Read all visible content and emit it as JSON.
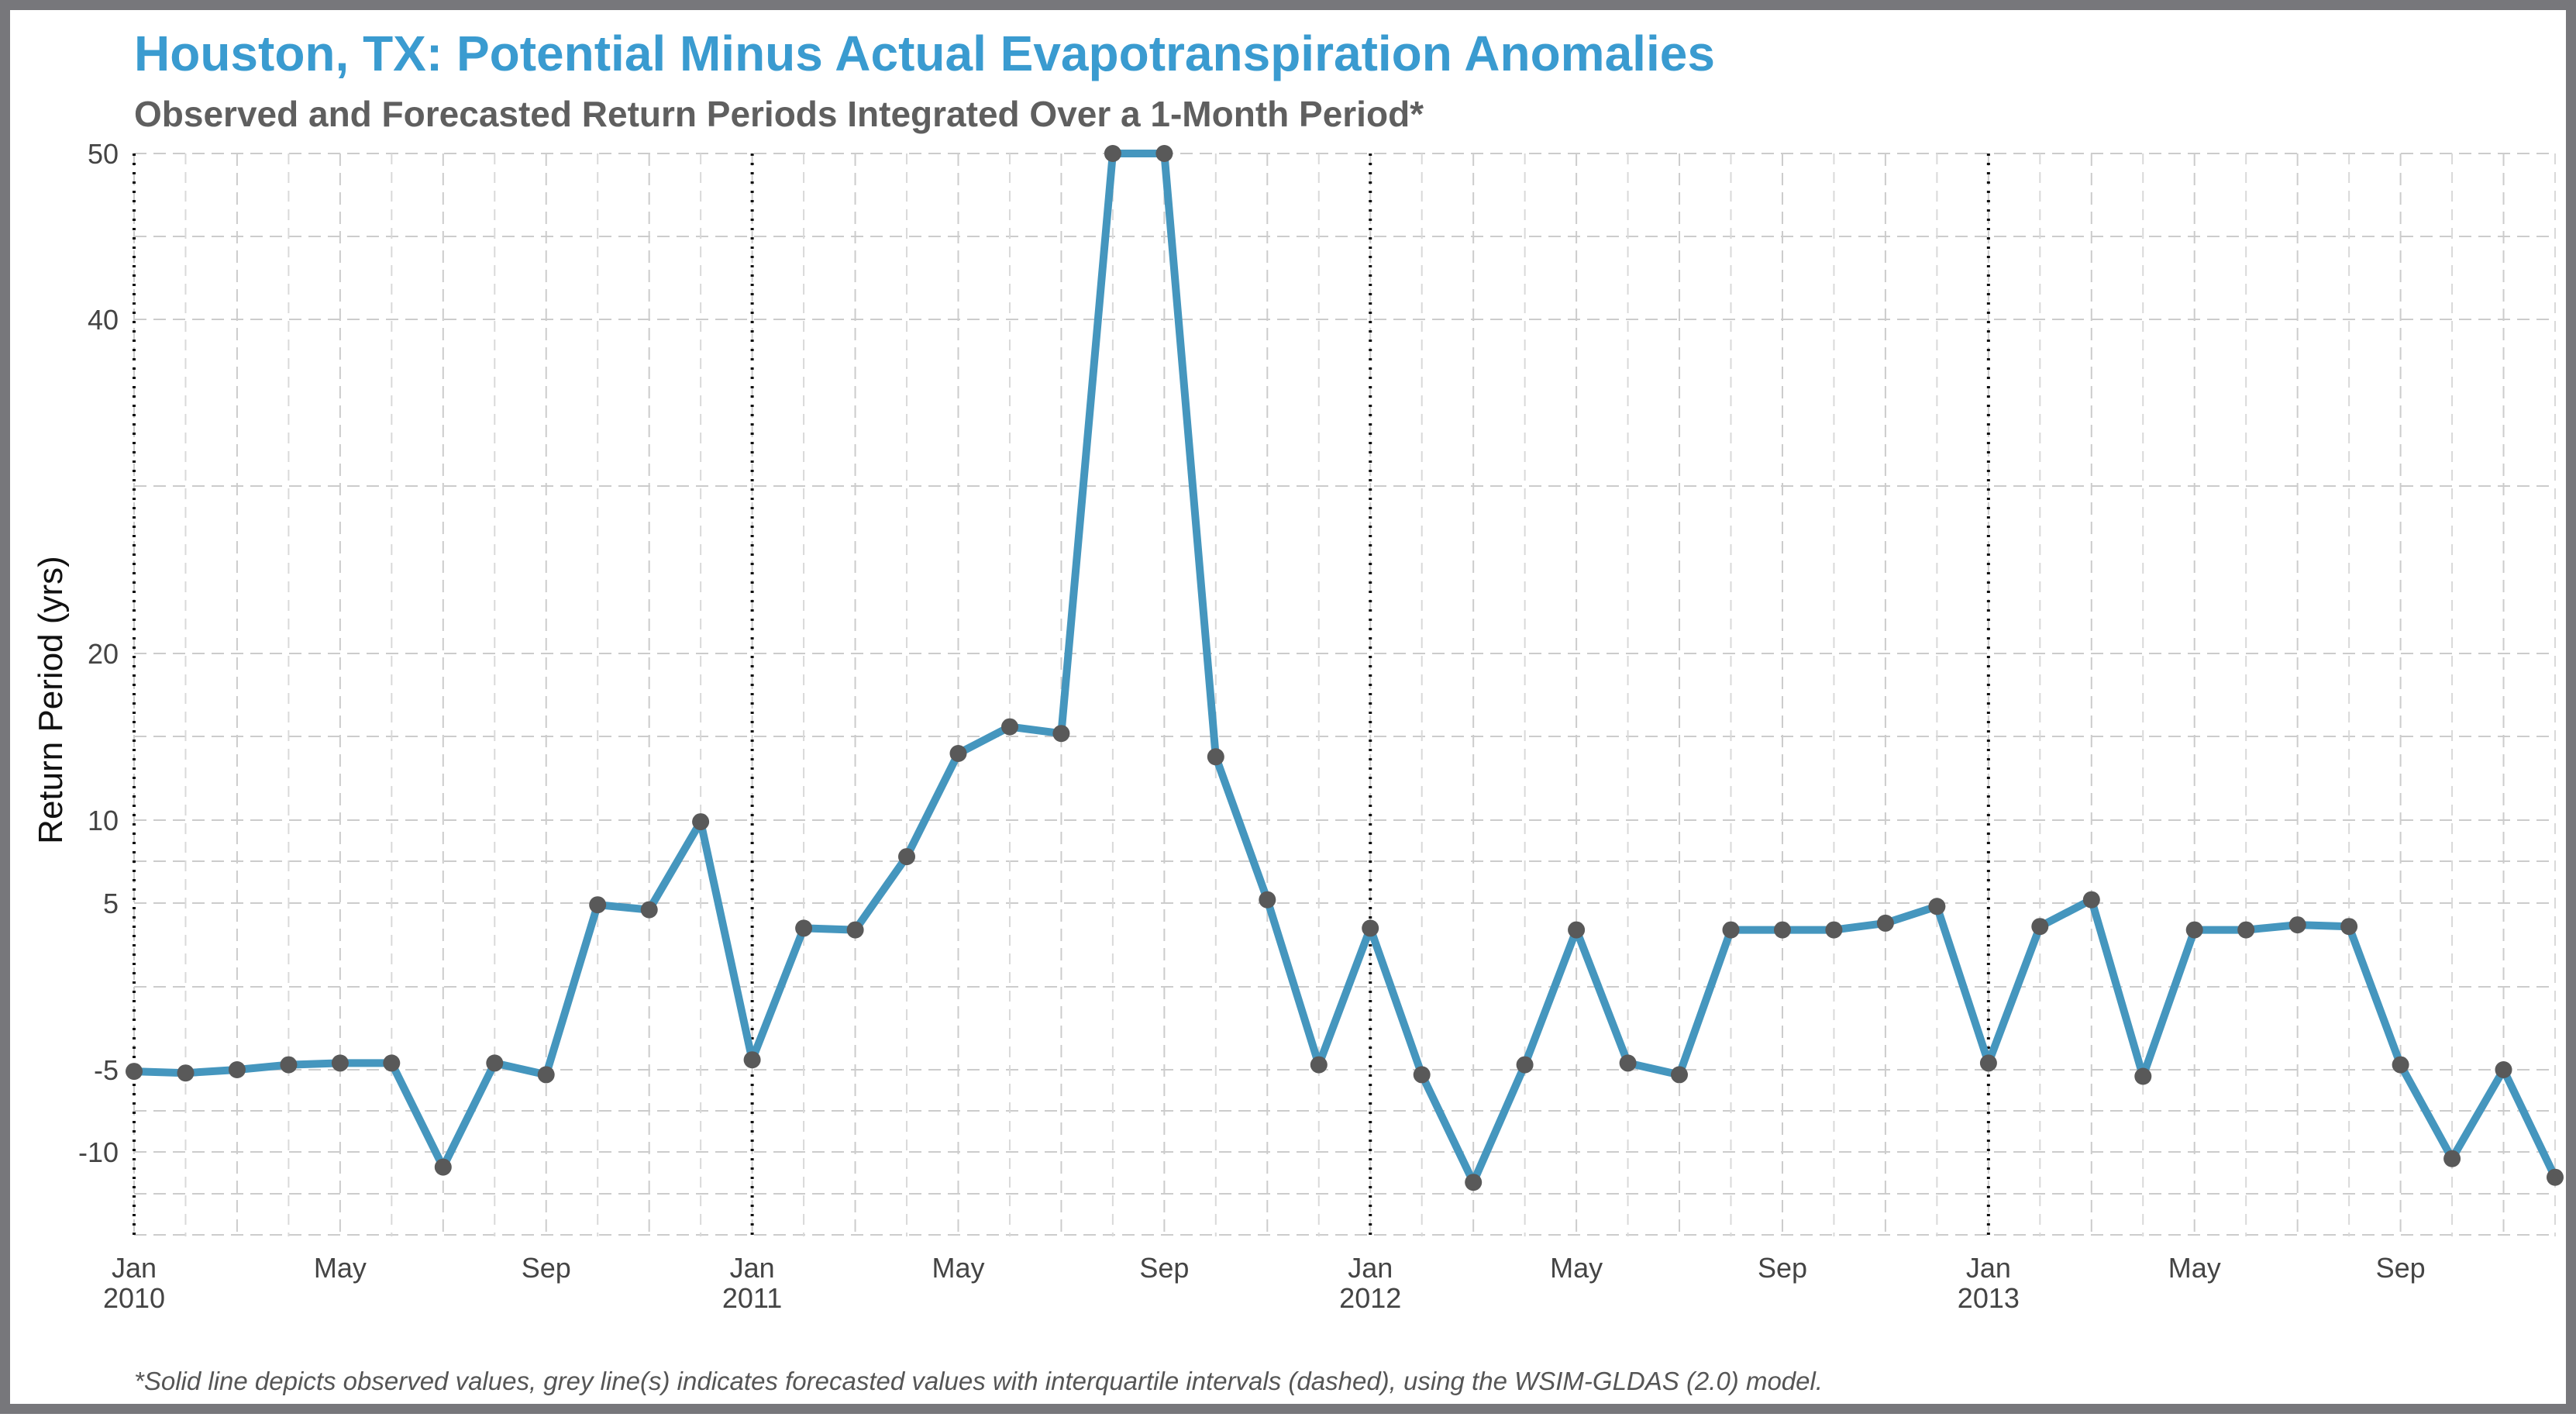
{
  "title": "Houston, TX: Potential Minus Actual Evapotranspiration Anomalies",
  "subtitle": "Observed and Forecasted Return Periods Integrated Over a 1-Month Period*",
  "caption": "*Solid line depicts observed values, grey line(s) indicates forecasted values with interquartile intervals (dashed), using the WSIM-GLDAS (2.0) model.",
  "colors": {
    "title": "#3a9bd0",
    "line": "#4596be",
    "points": "#595959",
    "frame": "#77777b"
  },
  "chart_data": {
    "type": "line",
    "title": "Houston, TX: Potential Minus Actual Evapotranspiration Anomalies",
    "subtitle": "Observed and Forecasted Return Periods Integrated Over a 1-Month Period*",
    "ylabel": "Return Period (yrs)",
    "xlabel": "",
    "y_ticks": [
      "50",
      "40",
      "20",
      "10",
      "5",
      "-5",
      "-10"
    ],
    "x_ticks": [
      {
        "month": "Jan",
        "year": "2010"
      },
      {
        "month": "May",
        "year": ""
      },
      {
        "month": "Sep",
        "year": ""
      },
      {
        "month": "Jan",
        "year": "2011"
      },
      {
        "month": "May",
        "year": ""
      },
      {
        "month": "Sep",
        "year": ""
      },
      {
        "month": "Jan",
        "year": "2012"
      },
      {
        "month": "May",
        "year": ""
      },
      {
        "month": "Sep",
        "year": ""
      },
      {
        "month": "Jan",
        "year": "2013"
      },
      {
        "month": "May",
        "year": ""
      },
      {
        "month": "Sep",
        "year": ""
      }
    ],
    "x_range": [
      "2010-01",
      "2013-12"
    ],
    "y_scale": "categorical return-period scale (non-linear), 50 at top, below -10 at bottom",
    "grid": true,
    "year_separators": [
      "2010-01",
      "2011-01",
      "2012-01",
      "2013-01"
    ],
    "series": [
      {
        "x": [
          "2010-01",
          "2010-02",
          "2010-03",
          "2010-04",
          "2010-05",
          "2010-06",
          "2010-07",
          "2010-08",
          "2010-09",
          "2010-10",
          "2010-11",
          "2010-12",
          "2011-01",
          "2011-02",
          "2011-03",
          "2011-04",
          "2011-05",
          "2011-06",
          "2011-07",
          "2011-08",
          "2011-09",
          "2011-10",
          "2011-11",
          "2011-12",
          "2012-01",
          "2012-02",
          "2012-03",
          "2012-04",
          "2012-05",
          "2012-06",
          "2012-07",
          "2012-08",
          "2012-09",
          "2012-10",
          "2012-11",
          "2012-12",
          "2013-01",
          "2013-02",
          "2013-03",
          "2013-04",
          "2013-05",
          "2013-06",
          "2013-07",
          "2013-08",
          "2013-09",
          "2013-10",
          "2013-11",
          "2013-12"
        ],
        "values": [
          -5.1,
          -5.2,
          -5.0,
          -4.7,
          -4.6,
          -4.6,
          -10.9,
          -4.6,
          -5.3,
          4.9,
          4.6,
          9.9,
          -4.4,
          3.5,
          3.4,
          7.8,
          14.0,
          15.6,
          15.2,
          50,
          50,
          13.8,
          5.2,
          -4.7,
          3.5,
          -5.3,
          -11.8,
          -4.7,
          3.4,
          -4.6,
          -5.3,
          3.4,
          3.4,
          3.4,
          3.8,
          4.8,
          -4.6,
          3.6,
          5.2,
          -5.4,
          3.4,
          3.4,
          3.7,
          3.6,
          -4.7,
          -10.4,
          -5.0,
          -11.5
        ]
      }
    ]
  }
}
